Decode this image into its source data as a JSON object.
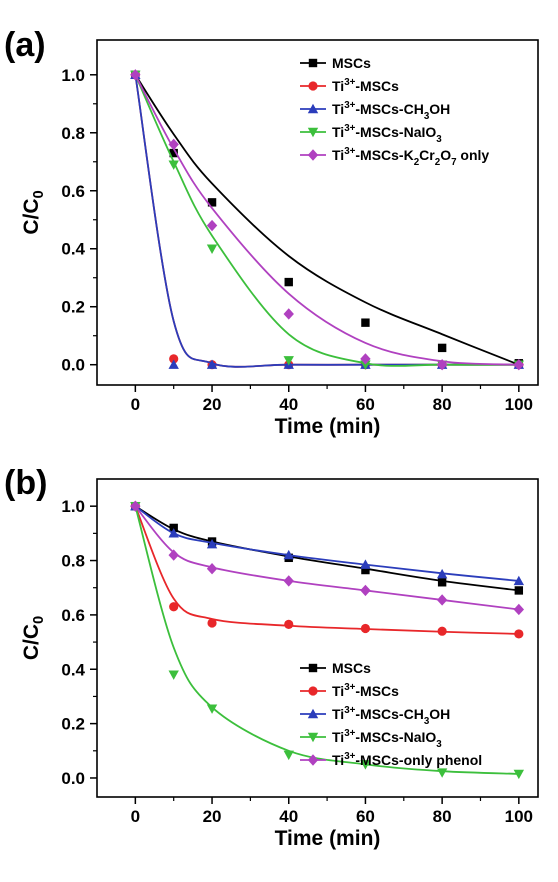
{
  "chart_data": [
    {
      "type": "line",
      "panel_label": "(a)",
      "xlabel": "Time (min)",
      "ylabel": "C/C0",
      "xlim": [
        -10,
        105
      ],
      "ylim": [
        -0.07,
        1.12
      ],
      "xticks": [
        0,
        20,
        40,
        60,
        80,
        100
      ],
      "yticks": [
        0.0,
        0.2,
        0.4,
        0.6,
        0.8,
        1.0
      ],
      "ytick_labels": [
        "0.0",
        "0.2",
        "0.4",
        "0.6",
        "0.8",
        "1.0"
      ],
      "grid": false,
      "legend_position": "top-right",
      "series": [
        {
          "name": "MSCs",
          "color": "#000000",
          "marker": "square",
          "x": [
            0,
            10,
            20,
            40,
            60,
            80,
            100
          ],
          "y": [
            1.0,
            0.73,
            0.56,
            0.285,
            0.145,
            0.058,
            0.005
          ],
          "fit": [
            1.0,
            0.795,
            0.625,
            0.375,
            0.215,
            0.105,
            0.0
          ]
        },
        {
          "name": "Ti3+-MSCs",
          "color": "#e8272a",
          "marker": "circle",
          "x": [
            0,
            10,
            20,
            40,
            60,
            80,
            100
          ],
          "y": [
            1.0,
            0.02,
            0.0,
            0.0,
            0.0,
            0.0,
            0.0
          ],
          "fit": [
            1.0,
            0.15,
            0.005,
            0.0,
            0.0,
            0.0,
            0.0
          ]
        },
        {
          "name": "Ti3+-MSCs-CH3OH",
          "color": "#2b3dbb",
          "marker": "triangle-up",
          "x": [
            0,
            10,
            20,
            40,
            60,
            80,
            100
          ],
          "y": [
            1.0,
            0.0,
            0.0,
            0.0,
            0.0,
            0.0,
            0.0
          ],
          "fit": [
            1.0,
            0.15,
            0.005,
            0.0,
            0.0,
            0.0,
            0.0
          ]
        },
        {
          "name": "Ti3+-MSCs-NaIO3",
          "color": "#3cbf3c",
          "marker": "triangle-down",
          "x": [
            0,
            10,
            20,
            40,
            60,
            80,
            100
          ],
          "y": [
            1.0,
            0.69,
            0.4,
            0.015,
            0.0,
            0.0,
            0.0
          ],
          "fit": [
            1.0,
            0.7,
            0.445,
            0.105,
            0.005,
            0.0,
            0.0
          ]
        },
        {
          "name": "Ti3+-MSCs-K2Cr2O7 only",
          "color": "#b041c0",
          "marker": "diamond",
          "x": [
            0,
            10,
            20,
            40,
            60,
            80,
            100
          ],
          "y": [
            1.0,
            0.76,
            0.48,
            0.175,
            0.02,
            0.0,
            0.0
          ],
          "fit": [
            1.0,
            0.745,
            0.54,
            0.245,
            0.075,
            0.012,
            0.0
          ]
        }
      ]
    },
    {
      "type": "line",
      "panel_label": "(b)",
      "xlabel": "Time (min)",
      "ylabel": "C/C0",
      "xlim": [
        -10,
        105
      ],
      "ylim": [
        -0.07,
        1.1
      ],
      "xticks": [
        0,
        20,
        40,
        60,
        80,
        100
      ],
      "yticks": [
        0.0,
        0.2,
        0.4,
        0.6,
        0.8,
        1.0
      ],
      "ytick_labels": [
        "0.0",
        "0.2",
        "0.4",
        "0.6",
        "0.8",
        "1.0"
      ],
      "grid": false,
      "legend_position": "bottom-right",
      "series": [
        {
          "name": "MSCs",
          "color": "#000000",
          "marker": "square",
          "x": [
            0,
            10,
            20,
            40,
            60,
            80,
            100
          ],
          "y": [
            1.0,
            0.92,
            0.87,
            0.81,
            0.765,
            0.72,
            0.69
          ],
          "fit": [
            1.0,
            0.915,
            0.87,
            0.815,
            0.77,
            0.725,
            0.69
          ]
        },
        {
          "name": "Ti3+-MSCs",
          "color": "#e8272a",
          "marker": "circle",
          "x": [
            0,
            10,
            20,
            40,
            60,
            80,
            100
          ],
          "y": [
            1.0,
            0.63,
            0.57,
            0.565,
            0.55,
            0.54,
            0.53
          ],
          "fit": [
            1.0,
            0.66,
            0.585,
            0.56,
            0.548,
            0.538,
            0.53
          ]
        },
        {
          "name": "Ti3+-MSCs-CH3OH",
          "color": "#2b3dbb",
          "marker": "triangle-up",
          "x": [
            0,
            10,
            20,
            40,
            60,
            80,
            100
          ],
          "y": [
            1.0,
            0.9,
            0.86,
            0.82,
            0.785,
            0.75,
            0.725
          ],
          "fit": [
            1.0,
            0.9,
            0.865,
            0.82,
            0.785,
            0.753,
            0.725
          ]
        },
        {
          "name": "Ti3+-MSCs-NaIO3",
          "color": "#3cbf3c",
          "marker": "triangle-down",
          "x": [
            0,
            10,
            20,
            40,
            60,
            80,
            100
          ],
          "y": [
            1.0,
            0.38,
            0.255,
            0.085,
            0.05,
            0.02,
            0.015
          ],
          "fit": [
            1.0,
            0.48,
            0.26,
            0.1,
            0.05,
            0.025,
            0.015
          ]
        },
        {
          "name": "Ti3+-MSCs-only phenol",
          "color": "#b041c0",
          "marker": "diamond",
          "x": [
            0,
            10,
            20,
            40,
            60,
            80,
            100
          ],
          "y": [
            1.0,
            0.82,
            0.77,
            0.725,
            0.69,
            0.655,
            0.62
          ],
          "fit": [
            1.0,
            0.83,
            0.775,
            0.725,
            0.69,
            0.655,
            0.62
          ]
        }
      ]
    }
  ]
}
